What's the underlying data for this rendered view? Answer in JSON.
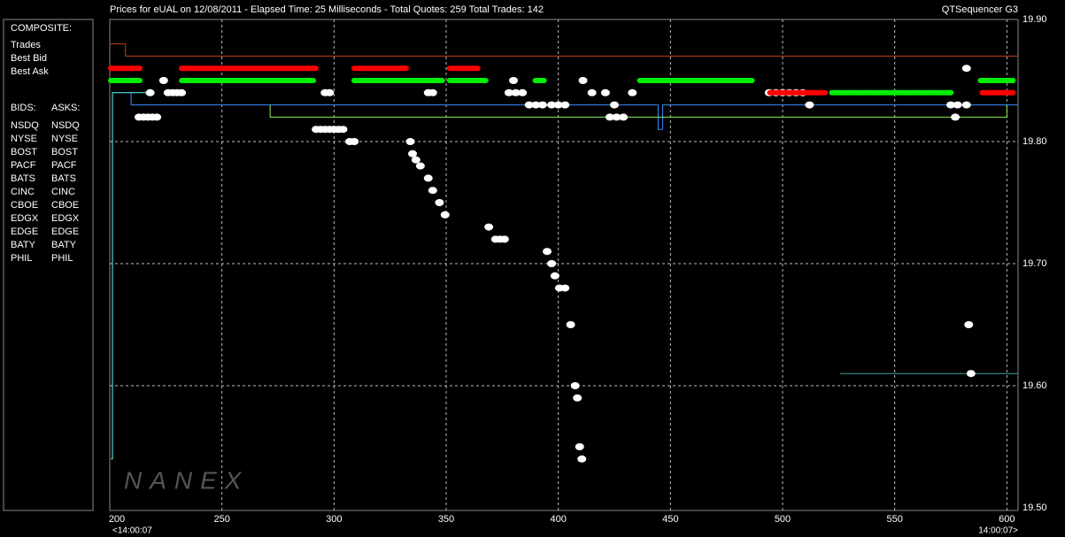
{
  "header": {
    "title": "Prices for  eUAL  on  12/08/2011  -  Elapsed Time: 25 Milliseconds  -  Total Quotes: 259  Total Trades: 142",
    "app": "QTSequencer G3"
  },
  "legend": {
    "composite_title": "COMPOSITE:",
    "bids_title": "BIDS:",
    "asks_title": "ASKS:",
    "exchanges": [
      {
        "bid": "NSDQ",
        "bid_color": "#3c8cff",
        "ask": "NSDQ",
        "ask_color": "#ff9a5a",
        "bid_line": {
          "x": [
            209.5,
            209.5,
            444.5,
            444.5,
            446.5,
            446.5,
            605
          ],
          "values": [
            19.84,
            19.83,
            19.83,
            19.81,
            19.81,
            19.83,
            19.83
          ]
        }
      },
      {
        "bid": "NYSE",
        "bid_color": "#ffff80",
        "ask": "NYSE",
        "ask_color": "#ffa070"
      },
      {
        "bid": "BOST",
        "bid_color": "#90ee60",
        "ask": "BOST",
        "ask_color": "#ff8080",
        "bid_line": {
          "x": [
            271.5,
            271.5,
            600,
            600
          ],
          "values": [
            19.83,
            19.82,
            19.82,
            19.83
          ]
        }
      },
      {
        "bid": "PACF",
        "bid_color": "#60ffff",
        "ask": "PACF",
        "ask_color": "#ffff40",
        "bid_line": {
          "x": [
            200.5,
            201.2,
            201.2,
            220
          ],
          "values": [
            19.54,
            19.54,
            19.84,
            19.84
          ]
        }
      },
      {
        "bid": "BATS",
        "bid_color": "#a0c0ff",
        "ask": "BATS",
        "ask_color": "#ffd0a0"
      },
      {
        "bid": "CINC",
        "bid_color": "#40a0a0",
        "ask": "CINC",
        "ask_color": "#c0a040",
        "bid_line": {
          "x": [
            525.7,
            605
          ],
          "values": [
            19.61,
            19.61
          ]
        }
      },
      {
        "bid": "CBOE",
        "bid_color": "#2040c0",
        "ask": "CBOE",
        "ask_color": "#ff8000"
      },
      {
        "bid": "EDGX",
        "bid_color": "#40a040",
        "ask": "EDGX",
        "ask_color": "#c04020",
        "ask_line": {
          "x": [
            200,
            207,
            207,
            605
          ],
          "values": [
            19.88,
            19.88,
            19.87,
            19.87
          ]
        }
      },
      {
        "bid": "EDGE",
        "bid_color": "#60a060",
        "ask": "EDGE",
        "ask_color": "#c06040"
      },
      {
        "bid": "BATY",
        "bid_color": "#6080ff",
        "ask": "BATY",
        "ask_color": "#ff4040"
      },
      {
        "bid": "PHIL",
        "bid_color": "#80a040",
        "ask": "PHIL",
        "ask_color": "#c04080"
      }
    ]
  },
  "chart_data": {
    "type": "scatter",
    "xlim": [
      200,
      605
    ],
    "ylim": [
      19.5,
      19.9
    ],
    "xticks": [
      200,
      250,
      300,
      350,
      400,
      450,
      500,
      550,
      600
    ],
    "yticks": [
      {
        "value": 19.5,
        "label": "19.50"
      },
      {
        "value": 19.6,
        "label": "19.60"
      },
      {
        "value": 19.7,
        "label": "19.70"
      },
      {
        "value": 19.8,
        "label": "19.80"
      },
      {
        "value": 19.9,
        "label": "19.90"
      }
    ],
    "x_start_label": "<14:00:07",
    "x_end_label": "14:00:07>",
    "watermark": "NANEX",
    "grid": true,
    "series": [
      {
        "name": "Trades",
        "color": "#ffffff",
        "x": [
          218,
          213,
          215,
          217,
          219,
          221,
          224,
          226,
          228,
          230,
          232,
          292,
          294,
          296,
          298,
          300,
          302,
          304,
          307,
          309,
          296,
          298,
          342,
          344,
          334,
          335,
          336.5,
          338.5,
          342,
          344,
          347,
          349.5,
          369,
          372,
          374,
          376,
          380,
          378,
          381,
          384,
          387,
          390,
          393,
          397,
          400,
          403,
          395,
          397,
          398.5,
          400.5,
          403,
          405.5,
          407.5,
          408.5,
          409.5,
          410.5,
          411,
          415,
          421,
          423,
          426,
          429,
          433,
          425,
          494,
          497,
          500,
          503,
          506,
          509,
          512,
          577,
          575,
          578,
          582,
          582,
          583,
          584
        ],
        "values": [
          19.84,
          19.82,
          19.82,
          19.82,
          19.82,
          19.82,
          19.85,
          19.84,
          19.84,
          19.84,
          19.84,
          19.81,
          19.81,
          19.81,
          19.81,
          19.81,
          19.81,
          19.81,
          19.8,
          19.8,
          19.84,
          19.84,
          19.84,
          19.84,
          19.8,
          19.79,
          19.785,
          19.78,
          19.77,
          19.76,
          19.75,
          19.74,
          19.73,
          19.72,
          19.72,
          19.72,
          19.85,
          19.84,
          19.84,
          19.84,
          19.83,
          19.83,
          19.83,
          19.83,
          19.83,
          19.83,
          19.71,
          19.7,
          19.69,
          19.68,
          19.68,
          19.65,
          19.6,
          19.59,
          19.55,
          19.54,
          19.85,
          19.84,
          19.84,
          19.82,
          19.82,
          19.82,
          19.84,
          19.83,
          19.84,
          19.84,
          19.84,
          19.84,
          19.84,
          19.84,
          19.83,
          19.82,
          19.83,
          19.83,
          19.83,
          19.86,
          19.65,
          19.61
        ]
      },
      {
        "name": "Best Bid",
        "color": "#00ee00",
        "x": [
          200.4,
          213.4,
          null,
          232,
          291,
          null,
          308.9,
          348.3,
          null,
          351.5,
          368,
          null,
          389.7,
          393.7,
          null,
          436.3,
          486.4,
          null,
          521.9,
          575.1,
          null,
          588.2,
          602.8
        ],
        "values": [
          19.85,
          19.85,
          null,
          19.85,
          19.85,
          null,
          19.85,
          19.85,
          null,
          19.85,
          19.85,
          null,
          19.85,
          19.85,
          null,
          19.85,
          19.85,
          null,
          19.84,
          19.84,
          null,
          19.85,
          19.85
        ]
      },
      {
        "name": "Best Ask",
        "color": "#ff0000",
        "x": [
          200.4,
          213.4,
          null,
          232,
          291.9,
          null,
          308.9,
          332.5,
          null,
          351.5,
          364.1,
          null,
          494.3,
          519,
          null,
          589,
          602.8
        ],
        "values": [
          19.86,
          19.86,
          null,
          19.86,
          19.86,
          null,
          19.86,
          19.86,
          null,
          19.86,
          19.86,
          null,
          19.84,
          19.84,
          null,
          19.84,
          19.84
        ]
      }
    ]
  }
}
